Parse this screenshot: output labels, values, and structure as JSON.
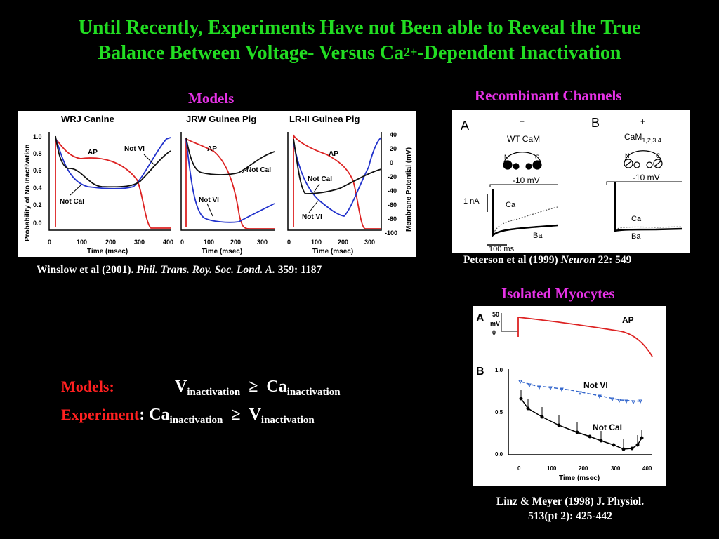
{
  "slide": {
    "title_line1": "Until Recently, Experiments Have not Been able to Reveal the True",
    "title_line2_a": "Balance Between Voltage-  Versus Ca",
    "title_line2_sup": "2+",
    "title_line2_b": "-Dependent Inactivation"
  },
  "models": {
    "heading": "Models",
    "labels": [
      "WRJ Canine",
      "JRW Guinea Pig",
      "LR-II Guinea Pig"
    ],
    "ylabel_left": "Probability of No Inactivation",
    "ylabel_right": "Membrane Potential (mV)",
    "xlabel": "Time (msec)",
    "left_ticks": [
      "1.0",
      "0.8",
      "0.6",
      "0.4",
      "0.2",
      "0.0"
    ],
    "right_ticks": [
      "40",
      "20",
      "0",
      "-20",
      "-40",
      "-60",
      "-80",
      "-100"
    ],
    "x_ticks_1": [
      "0",
      "100",
      "200",
      "300",
      "400"
    ],
    "x_ticks_2": [
      "0",
      "100",
      "200",
      "300"
    ],
    "x_ticks_3": [
      "0",
      "100",
      "200",
      "300"
    ],
    "ann": {
      "ap": "AP",
      "notvi": "Not VI",
      "notcai": "Not CaI"
    },
    "citation_plain": "Winslow et al (2001). ",
    "citation_italic": "Phil. Trans. Roy. Soc. Lond. A.",
    "citation_tail": " 359: 1187",
    "colors": {
      "ap": "#dd2222",
      "notvi": "#2233cc",
      "notcai": "#111111"
    }
  },
  "recombinant": {
    "heading": "Recombinant Channels",
    "panel_a": "A",
    "panel_b": "B",
    "wt": "WT CaM",
    "mut": "CaM",
    "mut_sub": "1,2,3,4",
    "plus": "+",
    "voltage": "-10 mV",
    "scale_current": "1 nA",
    "scale_time": "100 ms",
    "ca": "Ca",
    "ba": "Ba",
    "lobe_n": "N",
    "lobe_c": "C",
    "citation_plain": "Peterson et al (1999) ",
    "citation_italic": "Neuron",
    "citation_tail": " 22: 549"
  },
  "myocytes": {
    "heading": "Isolated Myocytes",
    "panel_a": "A",
    "panel_b": "B",
    "scale_50": "50",
    "scale_mv": "mV",
    "scale_0": "0",
    "ap": "AP",
    "notvi": "Not VI",
    "notcai": "Not CaI",
    "y_ticks": [
      "1.0",
      "0.5",
      "0.0"
    ],
    "x_ticks": [
      "0",
      "100",
      "200",
      "300",
      "400"
    ],
    "xlabel": "Time (msec)",
    "citation_line1": "Linz & Meyer (1998) J. Physiol.",
    "citation_line2": "513(pt 2): 425-442"
  },
  "equations": {
    "models_label": "Models:",
    "models_lhs": "V",
    "models_lhs_sub": "inactivation",
    "geq": "≥",
    "models_rhs": "Ca",
    "models_rhs_sub": "inactivation",
    "exp_label": "Experiment",
    "exp_colon": ":",
    "exp_lhs": "Ca",
    "exp_lhs_sub": "inactivation",
    "exp_rhs": "V",
    "exp_rhs_sub": "inactivation"
  }
}
